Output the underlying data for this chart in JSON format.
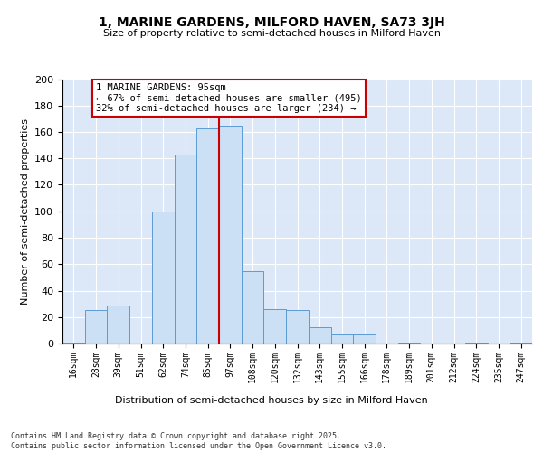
{
  "title": "1, MARINE GARDENS, MILFORD HAVEN, SA73 3JH",
  "subtitle": "Size of property relative to semi-detached houses in Milford Haven",
  "xlabel": "Distribution of semi-detached houses by size in Milford Haven",
  "ylabel": "Number of semi-detached properties",
  "categories": [
    "16sqm",
    "28sqm",
    "39sqm",
    "51sqm",
    "62sqm",
    "74sqm",
    "85sqm",
    "97sqm",
    "108sqm",
    "120sqm",
    "132sqm",
    "143sqm",
    "155sqm",
    "166sqm",
    "178sqm",
    "189sqm",
    "201sqm",
    "212sqm",
    "224sqm",
    "235sqm",
    "247sqm"
  ],
  "values": [
    1,
    25,
    29,
    0,
    100,
    143,
    163,
    165,
    55,
    26,
    25,
    12,
    7,
    7,
    0,
    1,
    0,
    0,
    1,
    0,
    1
  ],
  "property_size_label": "1 MARINE GARDENS: 95sqm",
  "pct_smaller": 67,
  "pct_smaller_count": 495,
  "pct_larger": 32,
  "pct_larger_count": 234,
  "bar_color": "#cce0f5",
  "bar_edge_color": "#5b9bd5",
  "vline_color": "#cc0000",
  "annotation_box_edge_color": "#cc0000",
  "background_color": "#dce8f8",
  "grid_color": "#ffffff",
  "footer_text": "Contains HM Land Registry data © Crown copyright and database right 2025.\nContains public sector information licensed under the Open Government Licence v3.0.",
  "vline_bin_index": 6.5,
  "ylim": [
    0,
    200
  ],
  "yticks": [
    0,
    20,
    40,
    60,
    80,
    100,
    120,
    140,
    160,
    180,
    200
  ]
}
